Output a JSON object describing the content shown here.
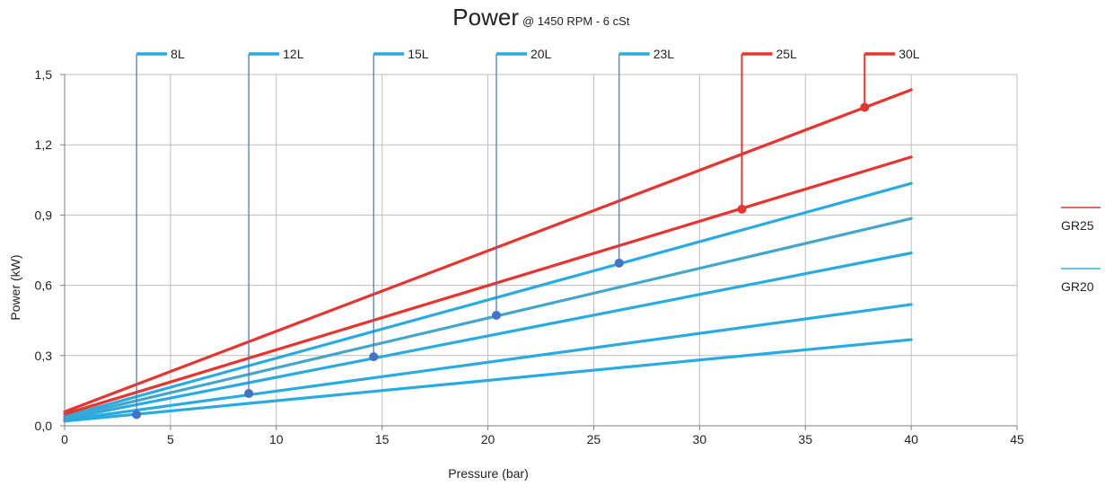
{
  "chart_data": {
    "type": "line",
    "title": "Power",
    "subtitle": "@ 1450 RPM  - 6 cSt",
    "xlabel": "Pressure (bar)",
    "ylabel": "Power (kW)",
    "xlim": [
      0,
      45
    ],
    "ylim": [
      0,
      1.5
    ],
    "x_ticks": [
      "0",
      "5",
      "10",
      "15",
      "20",
      "25",
      "30",
      "35",
      "40",
      "45"
    ],
    "y_ticks": [
      "0,0",
      "0,3",
      "0,6",
      "0,9",
      "1,2",
      "1,5"
    ],
    "grid": true,
    "legend_position": "right",
    "legend": [
      {
        "name": "GR25",
        "color": "#e8342e"
      },
      {
        "name": "GR20",
        "color": "#3ab1d6"
      }
    ],
    "colors": {
      "GR25": "#e8342e",
      "GR20": "#29abe2",
      "GR20_mid": "#44a7c9",
      "marker_blue": "#4472c4",
      "marker_red": "#e8342e",
      "callout_blue": "#4472c4"
    },
    "series": [
      {
        "name": "30L",
        "group": "GR25",
        "x": [
          0,
          40
        ],
        "y": [
          0.06,
          1.435
        ],
        "marker": {
          "x": 37.8,
          "y": 1.36
        }
      },
      {
        "name": "25L",
        "group": "GR25",
        "x": [
          0,
          40
        ],
        "y": [
          0.05,
          1.148
        ],
        "marker": {
          "x": 32.0,
          "y": 0.925
        }
      },
      {
        "name": "23L",
        "group": "GR20",
        "x": [
          0,
          40
        ],
        "y": [
          0.04,
          1.035
        ],
        "marker": {
          "x": 26.2,
          "y": 0.695
        }
      },
      {
        "name": "20L",
        "group": "GR20",
        "x": [
          0,
          40
        ],
        "y": [
          0.035,
          0.885
        ],
        "marker": {
          "x": 20.4,
          "y": 0.472
        }
      },
      {
        "name": "15L",
        "group": "GR20",
        "x": [
          0,
          40
        ],
        "y": [
          0.03,
          0.738
        ],
        "marker": {
          "x": 14.6,
          "y": 0.295
        }
      },
      {
        "name": "12L",
        "group": "GR20",
        "x": [
          0,
          40
        ],
        "y": [
          0.025,
          0.518
        ],
        "marker": {
          "x": 8.7,
          "y": 0.138
        }
      },
      {
        "name": "8L",
        "group": "GR20",
        "x": [
          0,
          40
        ],
        "y": [
          0.02,
          0.368
        ],
        "marker": {
          "x": 3.4,
          "y": 0.048
        }
      }
    ]
  }
}
